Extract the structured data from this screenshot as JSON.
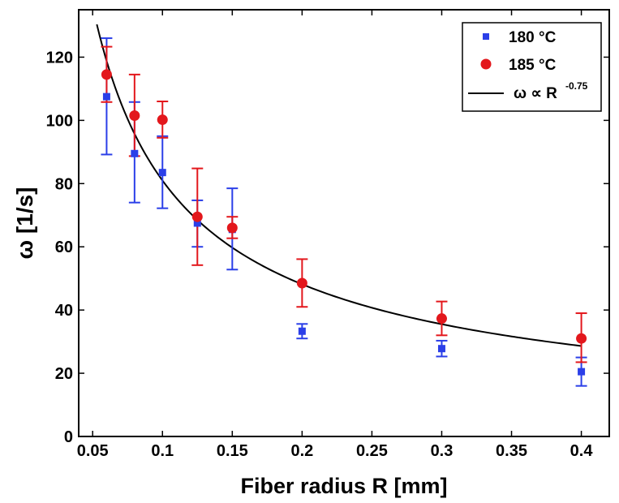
{
  "chart_data": {
    "type": "scatter",
    "xlabel": "Fiber radius R [mm]",
    "ylabel": "ω [1/s]",
    "xlim": [
      0.04,
      0.42
    ],
    "ylim": [
      0,
      135
    ],
    "xticks": [
      0.05,
      0.1,
      0.15,
      0.2,
      0.25,
      0.3,
      0.35,
      0.4
    ],
    "xtick_labels": [
      "0.05",
      "0.1",
      "0.15",
      "0.2",
      "0.25",
      "0.3",
      "0.35",
      "0.4"
    ],
    "yticks": [
      0,
      20,
      40,
      60,
      80,
      100,
      120
    ],
    "ytick_labels": [
      "0",
      "20",
      "40",
      "60",
      "80",
      "100",
      "120"
    ],
    "grid": false,
    "legend_position": "top-right",
    "series": [
      {
        "name": "180 °C",
        "marker": "square",
        "color": "#2b3fe8",
        "x": [
          0.06,
          0.08,
          0.1,
          0.125,
          0.15,
          0.2,
          0.3,
          0.4
        ],
        "y": [
          107.5,
          89.5,
          83.5,
          67.5,
          65.5,
          33.3,
          27.8,
          20.5
        ],
        "err_low": [
          18.3,
          15.5,
          11.3,
          7.5,
          12.7,
          2.3,
          2.5,
          4.5
        ],
        "err_high": [
          18.5,
          16.3,
          11.5,
          7.2,
          13.0,
          2.3,
          2.5,
          4.5
        ]
      },
      {
        "name": "185 °C",
        "marker": "circle",
        "color": "#e3171c",
        "x": [
          0.06,
          0.08,
          0.1,
          0.125,
          0.15,
          0.2,
          0.3,
          0.4
        ],
        "y": [
          114.5,
          101.5,
          100.2,
          69.5,
          66.0,
          48.5,
          37.3,
          31.0
        ],
        "err_low": [
          8.7,
          12.8,
          5.7,
          15.3,
          3.3,
          7.5,
          5.3,
          7.5
        ],
        "err_high": [
          8.8,
          13.0,
          5.8,
          15.3,
          3.5,
          7.6,
          5.4,
          8.0
        ]
      },
      {
        "name": "ω ∝ R",
        "name_superscript": "-0.75",
        "type": "line",
        "color": "#000000",
        "fit_exponent": -0.75,
        "fit_coefficient": 14.4,
        "x_range": [
          0.053,
          0.4
        ]
      }
    ]
  }
}
